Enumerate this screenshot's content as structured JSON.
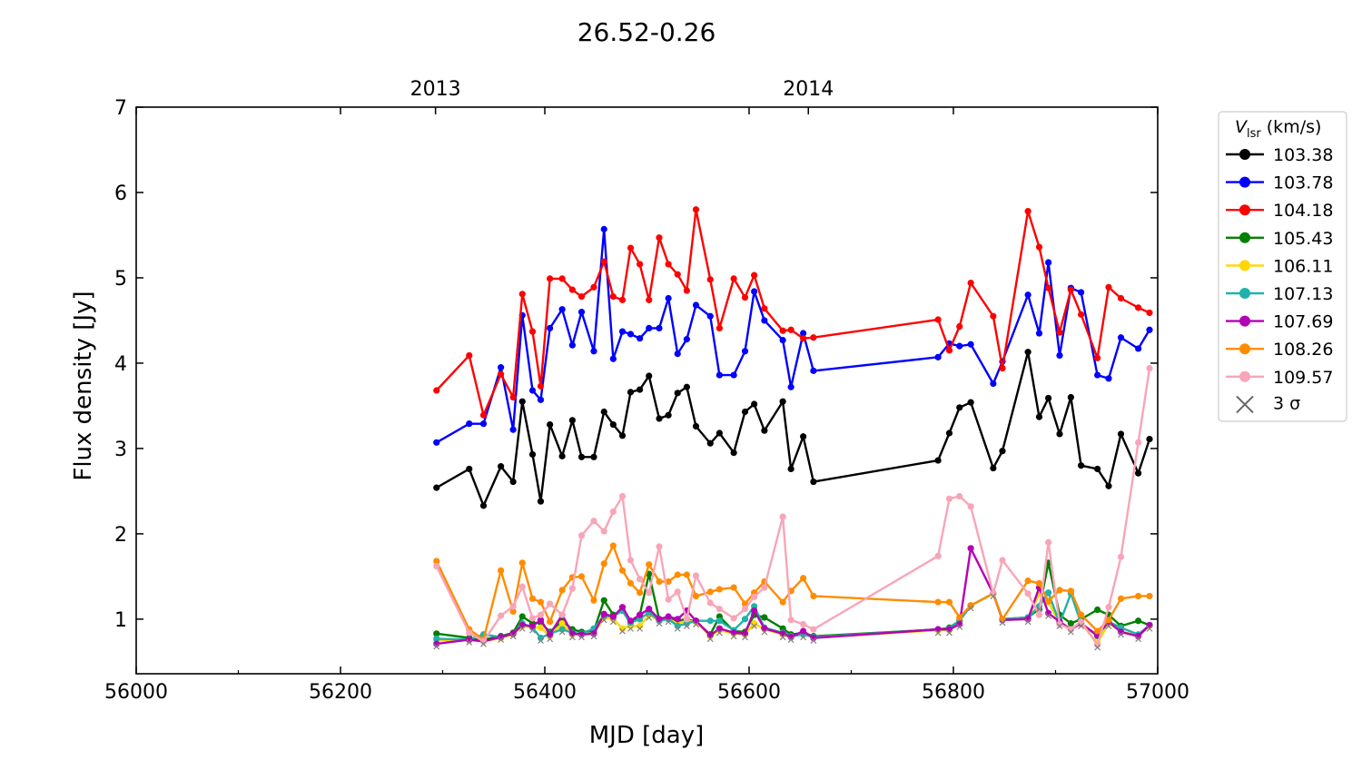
{
  "chart_data": {
    "type": "line",
    "title": "26.52-0.26",
    "xlabel": "MJD [day]",
    "ylabel": "Flux density [Jy]",
    "xlim": [
      56000,
      57000
    ],
    "ylim": [
      0.36,
      7
    ],
    "xticks": [
      56000,
      56200,
      56400,
      56600,
      56800,
      57000
    ],
    "xtick_labels": [
      "56000",
      "56200",
      "56400",
      "56600",
      "56800",
      "57000"
    ],
    "yticks": [
      1,
      2,
      3,
      4,
      5,
      6,
      7
    ],
    "ytick_labels": [
      "1",
      "2",
      "3",
      "4",
      "5",
      "6",
      "7"
    ],
    "top_axis": {
      "ticks": [
        56293,
        56658
      ],
      "labels": [
        "2013",
        "2014"
      ]
    },
    "grid": false,
    "legend": {
      "placement": "outside-right-top",
      "title_main": "V",
      "title_sub": "lsr",
      "title_unit": " (km/s)",
      "sigma_label": "3 σ"
    },
    "x": [
      56294,
      56326,
      56340,
      56357,
      56369,
      56378,
      56388,
      56396,
      56405,
      56417,
      56427,
      56436,
      56448,
      56458,
      56467,
      56476,
      56484,
      56493,
      56502,
      56512,
      56521,
      56530,
      56539,
      56548,
      56562,
      56571,
      56585,
      56596,
      56605,
      56615,
      56633,
      56641,
      56653,
      56663,
      56785,
      56796,
      56806,
      56817,
      56839,
      56848,
      56873,
      56884,
      56893,
      56904,
      56915,
      56925,
      56941,
      56952,
      56964,
      56981,
      56992
    ],
    "series": [
      {
        "name": "103.38",
        "color": "#000000",
        "values": [
          2.54,
          2.76,
          2.33,
          2.79,
          2.61,
          3.55,
          2.93,
          2.38,
          3.28,
          2.91,
          3.33,
          2.9,
          2.9,
          3.43,
          3.28,
          3.15,
          3.66,
          3.69,
          3.85,
          3.35,
          3.39,
          3.65,
          3.72,
          3.26,
          3.06,
          3.18,
          2.95,
          3.43,
          3.52,
          3.21,
          3.55,
          2.76,
          3.14,
          2.61,
          2.86,
          3.18,
          3.48,
          3.54,
          2.77,
          2.97,
          4.13,
          3.37,
          3.59,
          3.17,
          3.6,
          2.8,
          2.76,
          2.56,
          3.17,
          2.71,
          3.11
        ]
      },
      {
        "name": "103.78",
        "color": "#0000ff",
        "values": [
          3.07,
          3.29,
          3.29,
          3.95,
          3.22,
          4.56,
          3.68,
          3.57,
          4.41,
          4.63,
          4.21,
          4.6,
          4.14,
          5.57,
          4.05,
          4.37,
          4.34,
          4.29,
          4.41,
          4.41,
          4.76,
          4.11,
          4.28,
          4.68,
          4.55,
          3.86,
          3.86,
          4.14,
          4.84,
          4.5,
          4.27,
          3.72,
          4.35,
          3.91,
          4.07,
          4.23,
          4.2,
          4.22,
          3.76,
          4.02,
          4.8,
          4.35,
          5.18,
          4.09,
          4.88,
          4.83,
          3.86,
          3.82,
          4.3,
          4.17,
          4.39
        ]
      },
      {
        "name": "104.18",
        "color": "#ff0000",
        "values": [
          3.68,
          4.09,
          3.39,
          3.87,
          3.6,
          4.81,
          4.37,
          3.73,
          4.99,
          4.99,
          4.86,
          4.78,
          4.89,
          5.19,
          4.78,
          4.74,
          5.35,
          5.16,
          4.74,
          5.47,
          5.16,
          5.04,
          4.85,
          5.8,
          4.98,
          4.41,
          4.99,
          4.77,
          5.03,
          4.64,
          4.38,
          4.39,
          4.29,
          4.3,
          4.51,
          4.15,
          4.43,
          4.94,
          4.55,
          3.94,
          5.78,
          5.36,
          4.88,
          4.36,
          4.86,
          4.57,
          4.06,
          4.89,
          4.76,
          4.65,
          4.59
        ]
      },
      {
        "name": "105.43",
        "color": "#007f00",
        "values": [
          0.83,
          0.78,
          0.76,
          0.8,
          0.84,
          1.03,
          0.95,
          0.96,
          0.85,
          0.98,
          0.88,
          0.85,
          0.86,
          1.22,
          1.05,
          1.1,
          0.95,
          1.05,
          1.53,
          1.0,
          1.02,
          0.98,
          1.0,
          0.97,
          0.82,
          1.03,
          0.86,
          0.85,
          1.05,
          1.02,
          0.89,
          0.82,
          0.84,
          0.8,
          0.88,
          0.9,
          0.98,
          1.16,
          1.3,
          1.0,
          1.02,
          1.12,
          1.66,
          1.05,
          0.95,
          1.0,
          1.11,
          1.05,
          0.92,
          0.98,
          0.93
        ]
      },
      {
        "name": "106.11",
        "color": "#ffd700",
        "values": [
          0.75,
          0.75,
          0.74,
          0.78,
          0.82,
          0.92,
          0.9,
          0.9,
          0.8,
          0.95,
          0.82,
          0.82,
          0.83,
          1.02,
          1.0,
          0.89,
          0.92,
          0.92,
          1.05,
          0.98,
          1.0,
          0.95,
          0.98,
          0.97,
          0.8,
          0.87,
          0.83,
          0.82,
          0.95,
          0.88,
          0.82,
          0.79,
          0.84,
          0.78,
          0.87,
          0.87,
          0.99,
          1.16,
          1.3,
          0.99,
          1.0,
          1.3,
          1.2,
          0.95,
          0.88,
          0.95,
          0.72,
          0.95,
          0.86,
          0.8,
          0.92
        ]
      },
      {
        "name": "107.13",
        "color": "#20b2aa",
        "values": [
          0.77,
          0.76,
          0.82,
          0.79,
          0.83,
          0.95,
          0.9,
          0.78,
          0.83,
          0.88,
          0.84,
          0.83,
          0.89,
          1.04,
          1.03,
          1.1,
          0.96,
          1.0,
          1.08,
          0.98,
          1.0,
          0.92,
          0.95,
          0.98,
          0.98,
          0.98,
          0.87,
          1.0,
          1.15,
          0.9,
          0.84,
          0.8,
          0.82,
          0.79,
          0.88,
          0.89,
          0.98,
          1.16,
          1.3,
          1.0,
          1.02,
          1.15,
          1.31,
          0.95,
          1.3,
          0.95,
          0.8,
          0.97,
          0.9,
          0.82,
          0.93
        ]
      },
      {
        "name": "107.69",
        "color": "#b400b4",
        "values": [
          0.71,
          0.76,
          0.74,
          0.79,
          0.83,
          0.93,
          0.92,
          0.99,
          0.82,
          1.05,
          0.83,
          0.82,
          0.83,
          1.06,
          1.03,
          1.14,
          0.98,
          1.05,
          1.12,
          1.0,
          1.03,
          1.0,
          1.1,
          0.98,
          0.81,
          0.89,
          0.84,
          0.83,
          1.1,
          0.89,
          0.83,
          0.79,
          0.86,
          0.78,
          0.88,
          0.88,
          0.94,
          1.83,
          1.3,
          0.99,
          1.0,
          1.37,
          1.07,
          0.97,
          0.88,
          0.95,
          0.81,
          0.97,
          0.85,
          0.8,
          0.93
        ]
      },
      {
        "name": "108.26",
        "color": "#ff8c00",
        "values": [
          1.68,
          0.88,
          0.76,
          1.57,
          1.09,
          1.66,
          1.24,
          1.2,
          0.97,
          1.34,
          1.49,
          1.5,
          1.22,
          1.65,
          1.86,
          1.57,
          1.42,
          1.31,
          1.64,
          1.44,
          1.44,
          1.52,
          1.52,
          1.27,
          1.32,
          1.35,
          1.37,
          1.18,
          1.31,
          1.44,
          1.2,
          1.33,
          1.48,
          1.27,
          1.2,
          1.2,
          1.02,
          1.16,
          1.3,
          1.0,
          1.45,
          1.42,
          1.21,
          1.34,
          1.33,
          1.05,
          0.86,
          0.99,
          1.24,
          1.27,
          1.27
        ]
      },
      {
        "name": "109.57",
        "color": "#f8a5b8",
        "values": [
          1.62,
          0.84,
          0.74,
          1.04,
          1.15,
          1.38,
          1.01,
          1.05,
          1.18,
          1.05,
          1.36,
          1.98,
          2.15,
          2.03,
          2.26,
          2.44,
          1.69,
          1.47,
          1.31,
          1.85,
          1.23,
          1.32,
          1.0,
          1.51,
          1.19,
          1.12,
          1.01,
          1.12,
          1.26,
          1.37,
          2.2,
          0.99,
          0.94,
          0.88,
          1.74,
          2.41,
          2.44,
          2.32,
          1.3,
          1.69,
          1.3,
          1.05,
          1.9,
          0.94,
          0.88,
          0.97,
          0.7,
          1.14,
          1.73,
          3.07,
          3.94
        ]
      }
    ],
    "sigma": {
      "name": "3 σ",
      "color": "#808080",
      "values": [
        0.71,
        0.76,
        0.74,
        0.79,
        0.83,
        0.92,
        0.9,
        0.78,
        0.8,
        0.88,
        0.82,
        0.82,
        0.83,
        1.02,
        1.0,
        0.89,
        0.92,
        0.92,
        1.05,
        0.98,
        1.0,
        0.92,
        0.95,
        0.97,
        0.8,
        0.87,
        0.83,
        0.82,
        0.95,
        0.88,
        0.82,
        0.79,
        0.82,
        0.78,
        0.87,
        0.87,
        0.94,
        1.16,
        1.3,
        0.99,
        1.0,
        1.15,
        1.07,
        0.95,
        0.88,
        0.95,
        0.7,
        0.95,
        0.85,
        0.8,
        0.92
      ]
    }
  }
}
